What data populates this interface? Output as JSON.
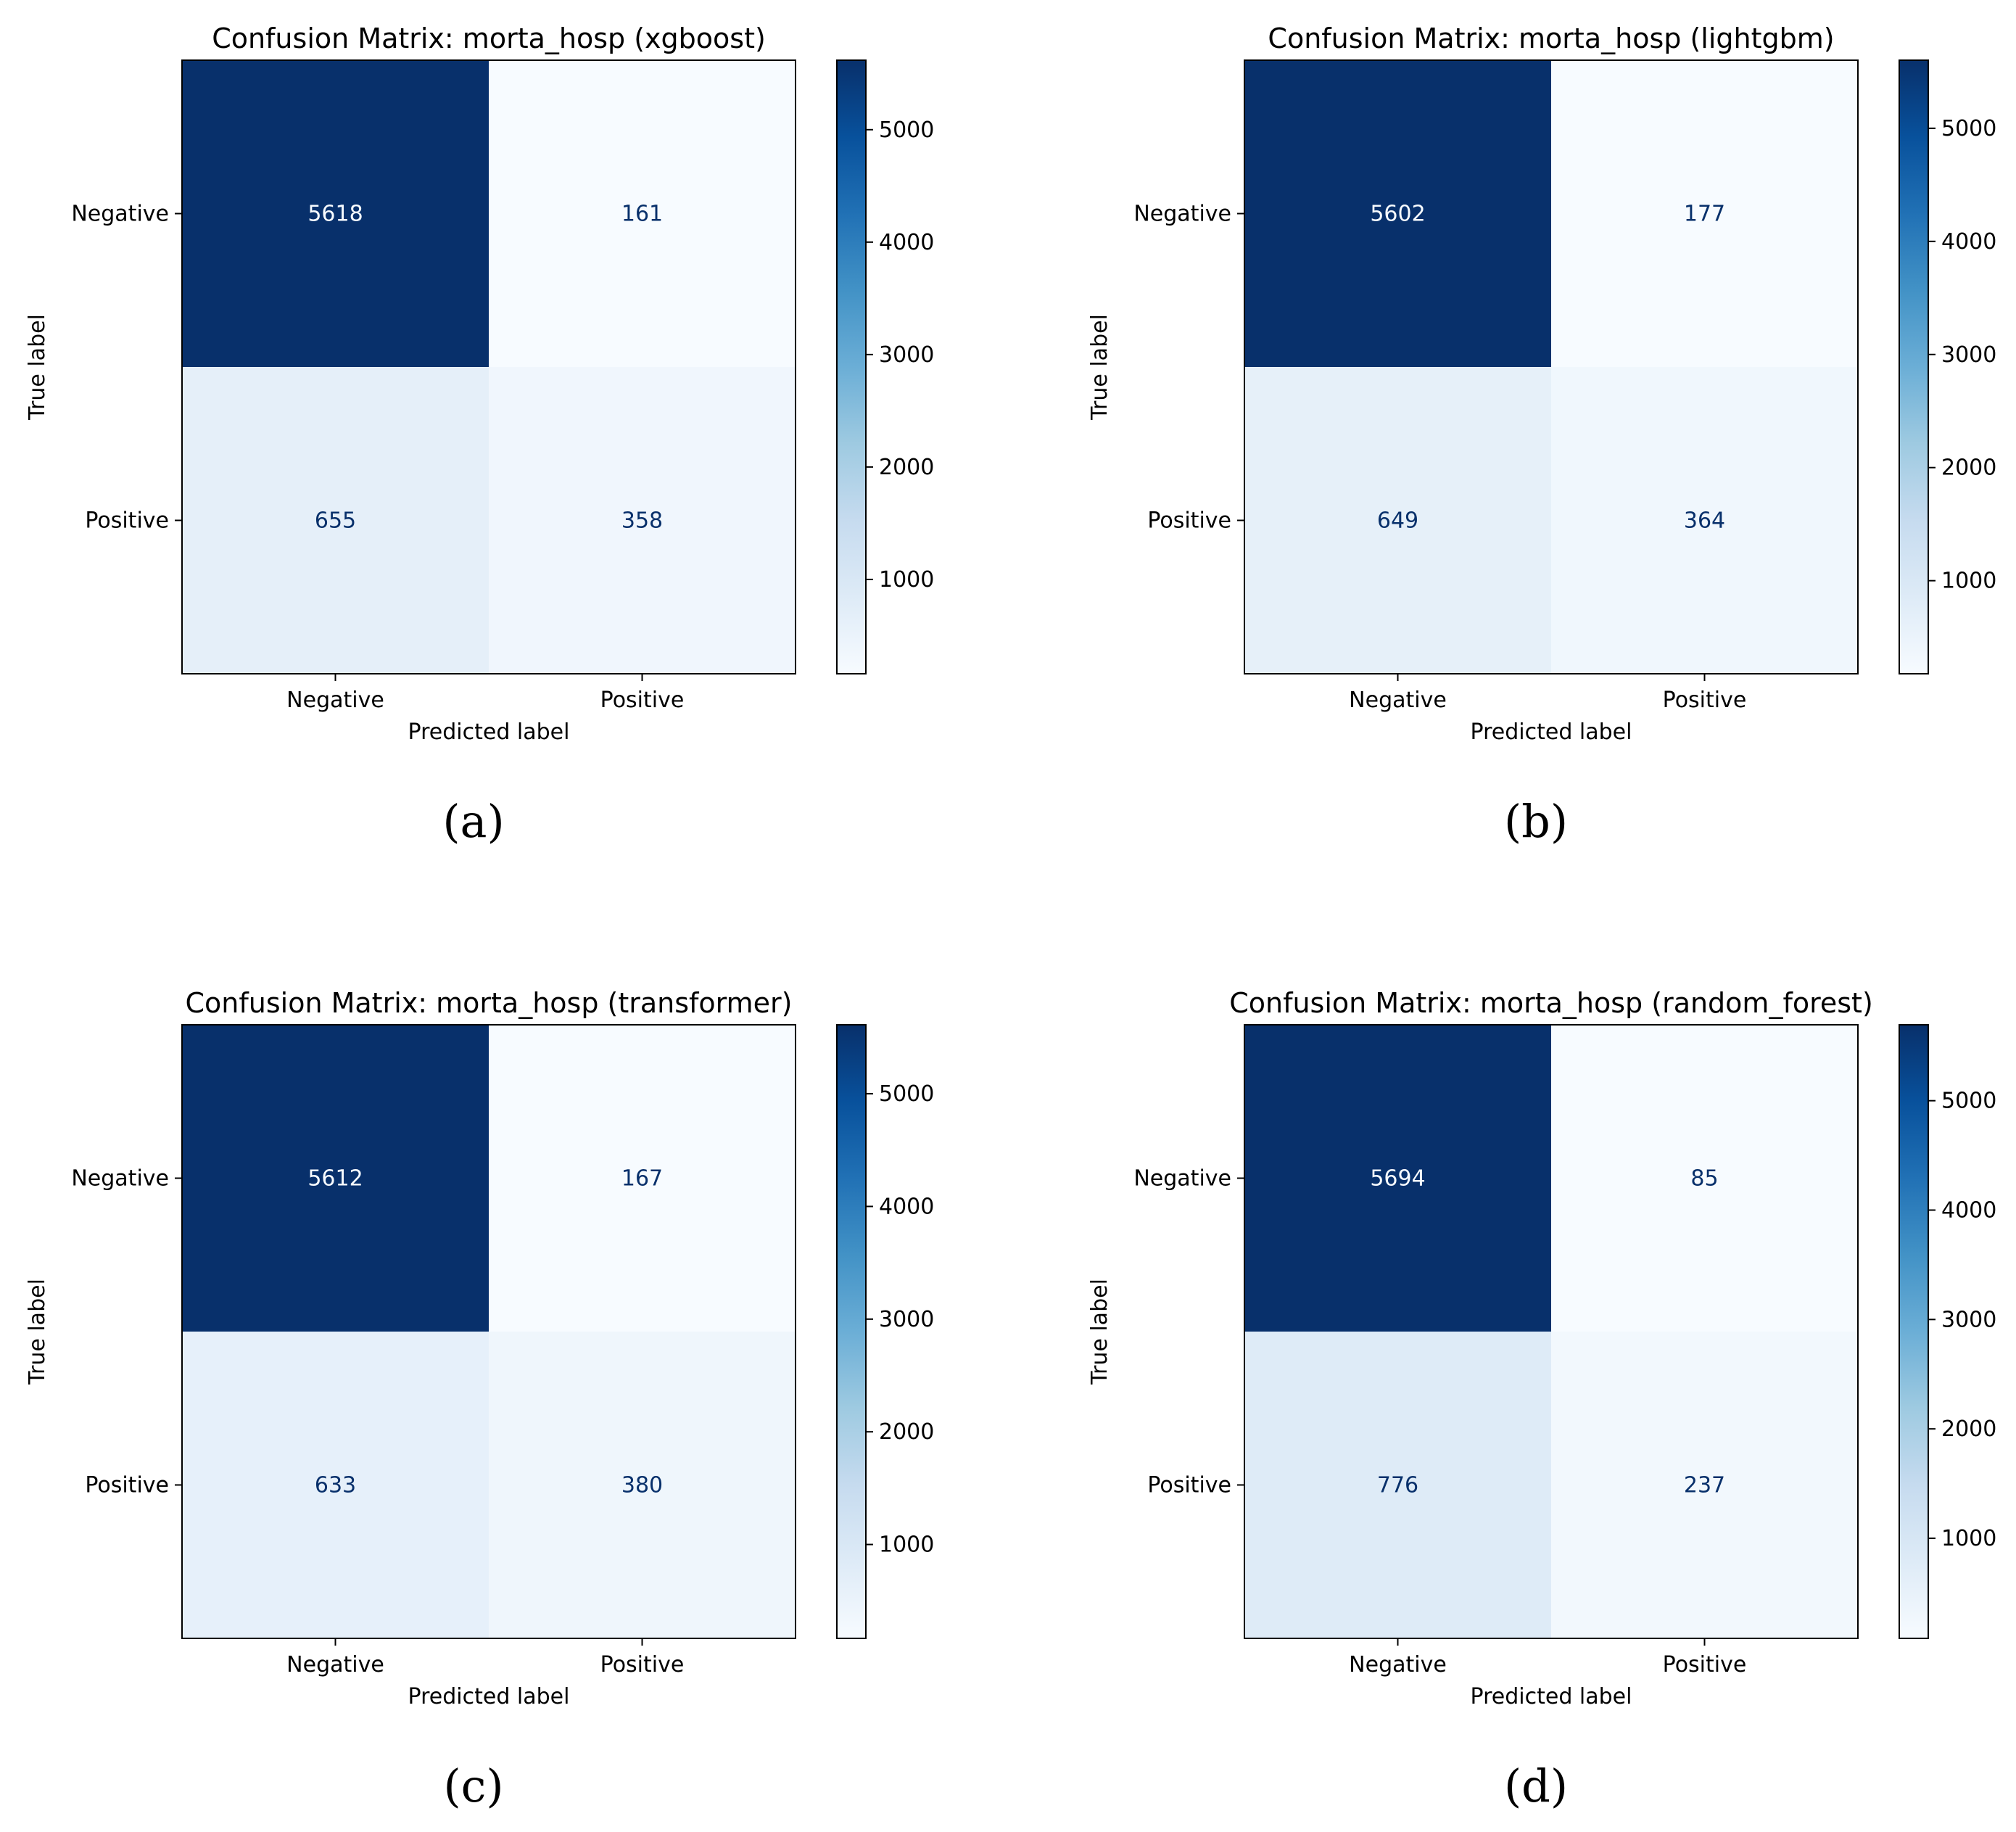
{
  "figure": {
    "axis_labels": {
      "x": "Predicted label",
      "y": "True label"
    },
    "class_labels": [
      "Negative",
      "Positive"
    ],
    "colormap": {
      "name": "Blues",
      "low_color": "#f7fbff",
      "high_color": "#08306b"
    }
  },
  "chart_data": [
    {
      "type": "heatmap",
      "panel_label": "(a)",
      "title": "Confusion Matrix: morta_hosp (xgboost)",
      "xlabel": "Predicted label",
      "ylabel": "True label",
      "x_categories": [
        "Negative",
        "Positive"
      ],
      "y_categories": [
        "Negative",
        "Positive"
      ],
      "matrix": [
        [
          5618,
          161
        ],
        [
          655,
          358
        ]
      ],
      "colorbar": {
        "min": 161,
        "max": 5618,
        "ticks": [
          1000,
          2000,
          3000,
          4000,
          5000
        ]
      }
    },
    {
      "type": "heatmap",
      "panel_label": "(b)",
      "title": "Confusion Matrix: morta_hosp (lightgbm)",
      "xlabel": "Predicted label",
      "ylabel": "True label",
      "x_categories": [
        "Negative",
        "Positive"
      ],
      "y_categories": [
        "Negative",
        "Positive"
      ],
      "matrix": [
        [
          5602,
          177
        ],
        [
          649,
          364
        ]
      ],
      "colorbar": {
        "min": 177,
        "max": 5602,
        "ticks": [
          1000,
          2000,
          3000,
          4000,
          5000
        ]
      }
    },
    {
      "type": "heatmap",
      "panel_label": "(c)",
      "title": "Confusion Matrix: morta_hosp (transformer)",
      "xlabel": "Predicted label",
      "ylabel": "True label",
      "x_categories": [
        "Negative",
        "Positive"
      ],
      "y_categories": [
        "Negative",
        "Positive"
      ],
      "matrix": [
        [
          5612,
          167
        ],
        [
          633,
          380
        ]
      ],
      "colorbar": {
        "min": 167,
        "max": 5612,
        "ticks": [
          1000,
          2000,
          3000,
          4000,
          5000
        ]
      }
    },
    {
      "type": "heatmap",
      "panel_label": "(d)",
      "title": "Confusion Matrix: morta_hosp (random_forest)",
      "xlabel": "Predicted label",
      "ylabel": "True label",
      "x_categories": [
        "Negative",
        "Positive"
      ],
      "y_categories": [
        "Negative",
        "Positive"
      ],
      "matrix": [
        [
          5694,
          85
        ],
        [
          776,
          237
        ]
      ],
      "colorbar": {
        "min": 85,
        "max": 5694,
        "ticks": [
          1000,
          2000,
          3000,
          4000,
          5000
        ]
      }
    }
  ]
}
